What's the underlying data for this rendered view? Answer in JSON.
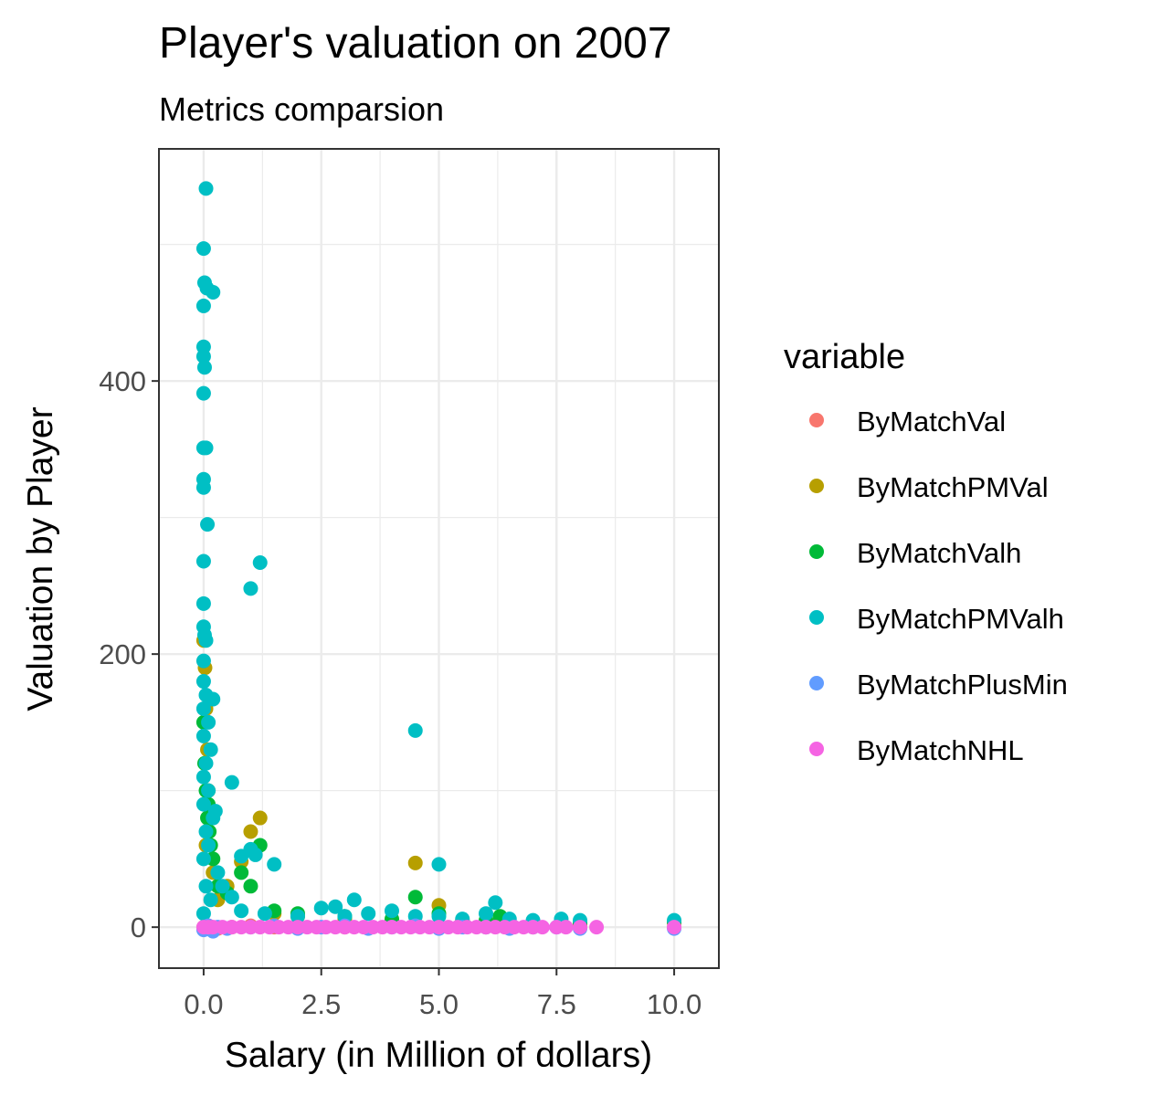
{
  "chart_data": {
    "type": "scatter",
    "title": "Player's valuation on 2007",
    "subtitle": "Metrics comparsion",
    "xlabel": "Salary (in Million of dollars)",
    "ylabel": "Valuation by Player",
    "xlim": [
      -0.95,
      10.95
    ],
    "ylim": [
      -30,
      570
    ],
    "x_ticks": [
      0.0,
      2.5,
      5.0,
      7.5,
      10.0
    ],
    "x_tick_labels": [
      "0.0",
      "2.5",
      "5.0",
      "7.5",
      "10.0"
    ],
    "y_ticks": [
      0,
      200,
      400
    ],
    "y_tick_labels": [
      "0",
      "200",
      "400"
    ],
    "grid": true,
    "legend": {
      "title": "variable",
      "position": "right"
    },
    "series": [
      {
        "name": "ByMatchVal",
        "color": "#F8766D",
        "points": [
          [
            0.0,
            0
          ],
          [
            0.1,
            1
          ],
          [
            0.3,
            -1
          ],
          [
            0.6,
            0
          ],
          [
            1.0,
            1
          ],
          [
            1.5,
            0
          ],
          [
            2.0,
            0
          ],
          [
            3.0,
            0
          ],
          [
            4.0,
            1
          ],
          [
            5.0,
            0
          ],
          [
            6.0,
            0
          ],
          [
            7.0,
            0
          ],
          [
            8.0,
            0
          ],
          [
            10.0,
            0
          ]
        ]
      },
      {
        "name": "ByMatchPMVal",
        "color": "#B79F00",
        "points": [
          [
            0.0,
            210
          ],
          [
            0.03,
            190
          ],
          [
            0.05,
            160
          ],
          [
            0.08,
            130
          ],
          [
            0.1,
            100
          ],
          [
            0.15,
            80
          ],
          [
            0.05,
            60
          ],
          [
            0.2,
            40
          ],
          [
            0.3,
            20
          ],
          [
            0.5,
            30
          ],
          [
            0.8,
            48
          ],
          [
            1.0,
            70
          ],
          [
            1.2,
            80
          ],
          [
            1.5,
            10
          ],
          [
            2.0,
            8
          ],
          [
            3.0,
            6
          ],
          [
            4.0,
            5
          ],
          [
            4.5,
            47
          ],
          [
            5.0,
            16
          ],
          [
            5.5,
            5
          ],
          [
            6.0,
            3
          ],
          [
            6.3,
            5
          ],
          [
            7.0,
            2
          ],
          [
            8.0,
            2
          ],
          [
            10.0,
            3
          ]
        ]
      },
      {
        "name": "ByMatchValh",
        "color": "#00BA38",
        "points": [
          [
            0.0,
            150
          ],
          [
            0.02,
            120
          ],
          [
            0.05,
            100
          ],
          [
            0.08,
            80
          ],
          [
            0.1,
            90
          ],
          [
            0.12,
            70
          ],
          [
            0.15,
            60
          ],
          [
            0.2,
            50
          ],
          [
            0.3,
            30
          ],
          [
            0.5,
            25
          ],
          [
            0.8,
            40
          ],
          [
            1.0,
            30
          ],
          [
            1.2,
            60
          ],
          [
            1.5,
            12
          ],
          [
            2.0,
            10
          ],
          [
            3.0,
            8
          ],
          [
            4.0,
            6
          ],
          [
            4.5,
            22
          ],
          [
            5.0,
            10
          ],
          [
            6.0,
            5
          ],
          [
            6.3,
            8
          ],
          [
            7.0,
            3
          ],
          [
            8.0,
            3
          ],
          [
            10.0,
            4
          ]
        ]
      },
      {
        "name": "ByMatchPMValh",
        "color": "#00BFC4",
        "points": [
          [
            0.05,
            541
          ],
          [
            0.0,
            497
          ],
          [
            0.02,
            472
          ],
          [
            0.07,
            468
          ],
          [
            0.2,
            465
          ],
          [
            0.0,
            455
          ],
          [
            0.0,
            425
          ],
          [
            0.0,
            418
          ],
          [
            0.02,
            410
          ],
          [
            0.0,
            391
          ],
          [
            0.0,
            351
          ],
          [
            0.05,
            351
          ],
          [
            0.0,
            328
          ],
          [
            0.0,
            322
          ],
          [
            0.08,
            295
          ],
          [
            0.0,
            268
          ],
          [
            1.0,
            248
          ],
          [
            1.2,
            267
          ],
          [
            0.0,
            237
          ],
          [
            0.0,
            220
          ],
          [
            0.02,
            214
          ],
          [
            0.05,
            210
          ],
          [
            0.0,
            195
          ],
          [
            0.0,
            180
          ],
          [
            0.05,
            170
          ],
          [
            0.2,
            167
          ],
          [
            0.0,
            160
          ],
          [
            0.1,
            150
          ],
          [
            0.0,
            140
          ],
          [
            0.15,
            130
          ],
          [
            0.05,
            120
          ],
          [
            0.0,
            110
          ],
          [
            0.1,
            100
          ],
          [
            0.0,
            90
          ],
          [
            0.2,
            80
          ],
          [
            0.05,
            70
          ],
          [
            0.1,
            60
          ],
          [
            0.0,
            50
          ],
          [
            0.3,
            40
          ],
          [
            0.05,
            30
          ],
          [
            0.15,
            20
          ],
          [
            0.0,
            10
          ],
          [
            0.25,
            85
          ],
          [
            0.6,
            106
          ],
          [
            0.8,
            52
          ],
          [
            1.0,
            57
          ],
          [
            1.1,
            53
          ],
          [
            1.5,
            46
          ],
          [
            0.4,
            30
          ],
          [
            0.6,
            22
          ],
          [
            0.8,
            12
          ],
          [
            1.3,
            10
          ],
          [
            2.0,
            8
          ],
          [
            2.5,
            14
          ],
          [
            2.8,
            15
          ],
          [
            3.0,
            8
          ],
          [
            3.2,
            20
          ],
          [
            3.5,
            10
          ],
          [
            4.0,
            12
          ],
          [
            4.5,
            144
          ],
          [
            4.5,
            8
          ],
          [
            5.0,
            46
          ],
          [
            5.0,
            8
          ],
          [
            5.5,
            6
          ],
          [
            6.0,
            10
          ],
          [
            6.2,
            18
          ],
          [
            6.5,
            6
          ],
          [
            7.0,
            5
          ],
          [
            7.6,
            6
          ],
          [
            8.0,
            5
          ],
          [
            10.0,
            5
          ]
        ]
      },
      {
        "name": "ByMatchPlusMin",
        "color": "#619CFF",
        "points": [
          [
            0.0,
            -2
          ],
          [
            0.1,
            1
          ],
          [
            0.2,
            -3
          ],
          [
            0.3,
            0
          ],
          [
            0.5,
            -1
          ],
          [
            1.0,
            0
          ],
          [
            1.5,
            1
          ],
          [
            2.0,
            -1
          ],
          [
            2.5,
            0
          ],
          [
            3.0,
            1
          ],
          [
            3.5,
            -1
          ],
          [
            4.0,
            0
          ],
          [
            4.5,
            1
          ],
          [
            5.0,
            -1
          ],
          [
            5.5,
            0
          ],
          [
            6.0,
            0
          ],
          [
            6.5,
            -1
          ],
          [
            7.0,
            0
          ],
          [
            7.5,
            0
          ],
          [
            8.0,
            -1
          ],
          [
            10.0,
            -1
          ]
        ]
      },
      {
        "name": "ByMatchNHL",
        "color": "#F564E3",
        "points": [
          [
            0.0,
            0
          ],
          [
            0.1,
            0
          ],
          [
            0.2,
            0
          ],
          [
            0.4,
            0
          ],
          [
            0.6,
            0
          ],
          [
            0.8,
            0
          ],
          [
            1.0,
            0
          ],
          [
            1.2,
            0
          ],
          [
            1.4,
            0
          ],
          [
            1.6,
            0
          ],
          [
            1.8,
            0
          ],
          [
            2.0,
            0
          ],
          [
            2.2,
            0
          ],
          [
            2.4,
            0
          ],
          [
            2.6,
            0
          ],
          [
            2.8,
            0
          ],
          [
            3.0,
            0
          ],
          [
            3.2,
            0
          ],
          [
            3.4,
            0
          ],
          [
            3.6,
            0
          ],
          [
            3.8,
            0
          ],
          [
            4.0,
            0
          ],
          [
            4.2,
            0
          ],
          [
            4.4,
            0
          ],
          [
            4.6,
            0
          ],
          [
            4.8,
            0
          ],
          [
            5.0,
            0
          ],
          [
            5.2,
            0
          ],
          [
            5.4,
            0
          ],
          [
            5.6,
            0
          ],
          [
            5.8,
            0
          ],
          [
            6.0,
            0
          ],
          [
            6.2,
            0
          ],
          [
            6.4,
            0
          ],
          [
            6.6,
            0
          ],
          [
            6.8,
            0
          ],
          [
            7.0,
            0
          ],
          [
            7.2,
            0
          ],
          [
            7.5,
            0
          ],
          [
            7.7,
            0
          ],
          [
            8.0,
            0
          ],
          [
            8.35,
            0
          ],
          [
            10.0,
            0
          ]
        ]
      }
    ]
  }
}
